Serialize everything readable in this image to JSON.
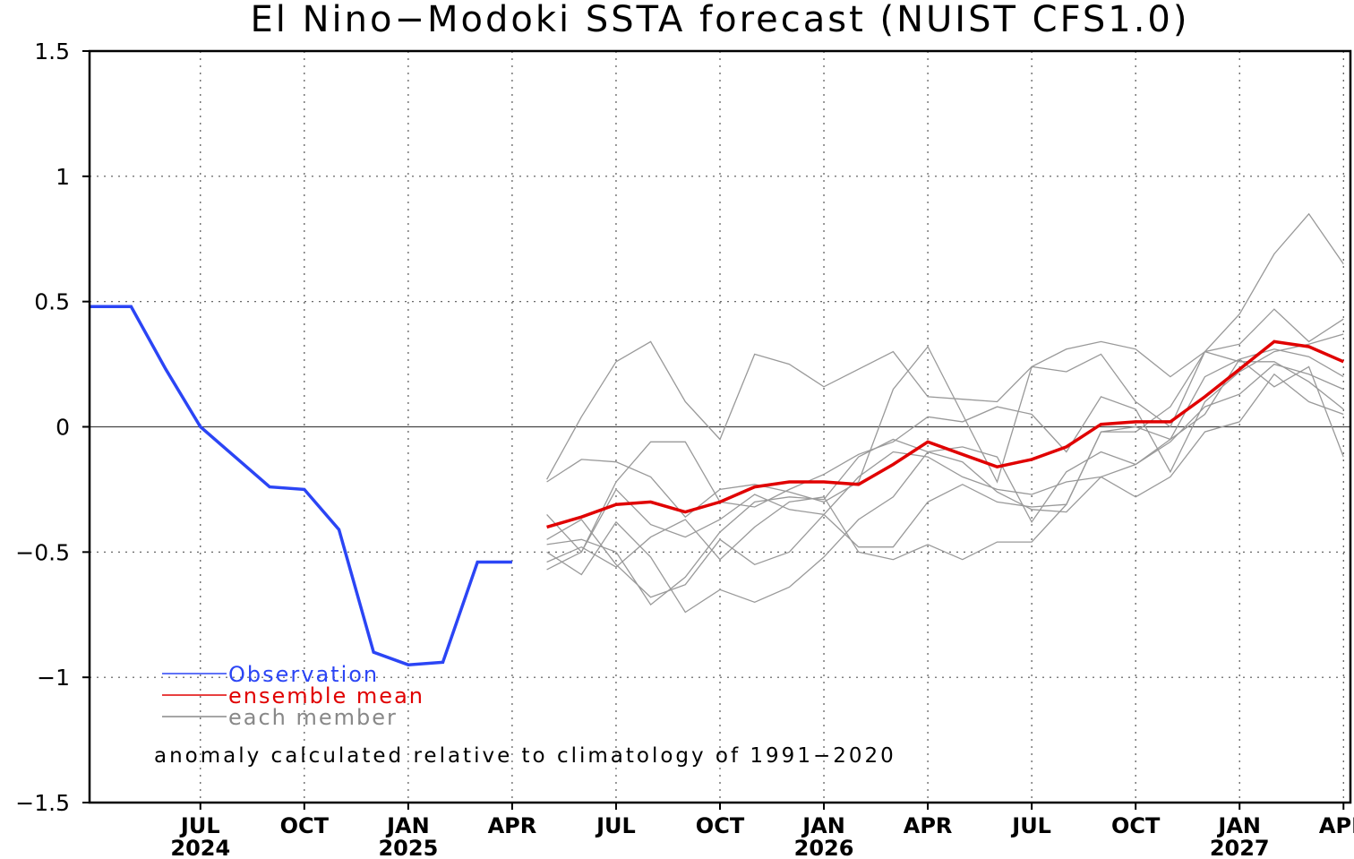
{
  "chart_data": {
    "type": "line",
    "title": "El Nino−Modoki SSTA forecast (NUIST CFS1.0)",
    "xlabel": "",
    "ylabel": "",
    "ylim": [
      -1.5,
      1.5
    ],
    "yticks": [
      1.5,
      1,
      0.5,
      0,
      -0.5,
      -1,
      -1.5
    ],
    "ytick_labels": [
      "1.5",
      "1",
      "0.5",
      "0",
      "−0.5",
      "−1",
      "−1.5"
    ],
    "x_unit": "months since Apr 2024 (Apr 2024 = 0)",
    "xlim": [
      -0.2,
      36.2
    ],
    "xticks": [
      {
        "month": 3,
        "label": "JUL",
        "year": "2024"
      },
      {
        "month": 6,
        "label": "OCT",
        "year": ""
      },
      {
        "month": 9,
        "label": "JAN",
        "year": "2025"
      },
      {
        "month": 12,
        "label": "APR",
        "year": ""
      },
      {
        "month": 15,
        "label": "JUL",
        "year": ""
      },
      {
        "month": 18,
        "label": "OCT",
        "year": ""
      },
      {
        "month": 21,
        "label": "JAN",
        "year": "2026"
      },
      {
        "month": 24,
        "label": "APR",
        "year": ""
      },
      {
        "month": 27,
        "label": "JUL",
        "year": ""
      },
      {
        "month": 30,
        "label": "OCT",
        "year": ""
      },
      {
        "month": 33,
        "label": "JAN",
        "year": "2027"
      },
      {
        "month": 36,
        "label": "APR",
        "year": ""
      }
    ],
    "grid": true,
    "zero_line": true,
    "legend": {
      "placement": "bottom-left",
      "entries": [
        {
          "name": "Observation",
          "color": "#2b45f5"
        },
        {
          "name": "ensemble mean",
          "color": "#e00000"
        },
        {
          "name": "each member",
          "color": "#888888"
        }
      ]
    },
    "annotation": "anomaly calculated relative to climatology of 1991−2020",
    "series": [
      {
        "name": "Observation",
        "color": "#2b45f5",
        "x": [
          -0.2,
          1,
          2,
          3,
          4,
          5,
          6,
          7,
          8,
          9,
          10,
          11,
          12
        ],
        "y": [
          0.48,
          0.48,
          0.23,
          0.0,
          -0.12,
          -0.24,
          -0.25,
          -0.41,
          -0.9,
          -0.95,
          -0.94,
          -0.54,
          -0.54
        ]
      },
      {
        "name": "ensemble mean",
        "color": "#e00000",
        "x": [
          13,
          14,
          15,
          16,
          17,
          18,
          19,
          20,
          21,
          22,
          23,
          24,
          25,
          26,
          27,
          28,
          29,
          30,
          31,
          32,
          33,
          34,
          35,
          36
        ],
        "y": [
          -0.4,
          -0.36,
          -0.31,
          -0.3,
          -0.34,
          -0.3,
          -0.24,
          -0.22,
          -0.22,
          -0.23,
          -0.15,
          -0.06,
          -0.11,
          -0.16,
          -0.13,
          -0.08,
          0.01,
          0.02,
          0.02,
          0.12,
          0.23,
          0.34,
          0.32,
          0.26
        ]
      }
    ],
    "members": [
      {
        "x": [
          13,
          14,
          15,
          16,
          17,
          18,
          19,
          20,
          21,
          22,
          23,
          24,
          25,
          26,
          27,
          28,
          29,
          30,
          31,
          32,
          33,
          34,
          35,
          36
        ],
        "y": [
          -0.21,
          0.04,
          0.26,
          0.34,
          0.1,
          -0.05,
          0.29,
          0.25,
          0.16,
          0.23,
          0.3,
          0.12,
          0.11,
          0.1,
          0.24,
          0.31,
          0.34,
          0.31,
          0.2,
          0.3,
          0.45,
          0.69,
          0.85,
          0.65
        ]
      },
      {
        "x": [
          13,
          14,
          15,
          16,
          17,
          18,
          19,
          20,
          21,
          22,
          23,
          24,
          25,
          26,
          27,
          28,
          29,
          30,
          31,
          32,
          33,
          34,
          35,
          36
        ],
        "y": [
          -0.22,
          -0.13,
          -0.14,
          -0.2,
          -0.36,
          -0.25,
          -0.23,
          -0.26,
          -0.3,
          -0.22,
          0.15,
          0.32,
          0.05,
          -0.22,
          0.24,
          0.22,
          0.29,
          0.1,
          0.0,
          0.3,
          0.33,
          0.47,
          0.34,
          0.43
        ]
      },
      {
        "x": [
          13,
          14,
          15,
          16,
          17,
          18,
          19,
          20,
          21,
          22,
          23,
          24,
          25,
          26,
          27,
          28,
          29,
          30,
          31,
          32,
          33,
          34,
          35,
          36
        ],
        "y": [
          -0.35,
          -0.5,
          -0.22,
          -0.06,
          -0.06,
          -0.3,
          -0.32,
          -0.25,
          -0.19,
          -0.11,
          -0.06,
          0.04,
          0.02,
          0.08,
          0.05,
          -0.1,
          0.12,
          0.07,
          -0.18,
          0.1,
          0.22,
          0.3,
          0.33,
          0.37
        ]
      },
      {
        "x": [
          13,
          14,
          15,
          16,
          17,
          18,
          19,
          20,
          21,
          22,
          23,
          24,
          25,
          26,
          27,
          28,
          29,
          30,
          31,
          32,
          33,
          34,
          35,
          36
        ],
        "y": [
          -0.47,
          -0.45,
          -0.5,
          -0.71,
          -0.6,
          -0.42,
          -0.3,
          -0.28,
          -0.29,
          -0.12,
          -0.05,
          -0.1,
          -0.08,
          -0.12,
          -0.38,
          -0.18,
          -0.1,
          -0.15,
          -0.05,
          0.05,
          0.27,
          0.31,
          0.28,
          0.2
        ]
      },
      {
        "x": [
          13,
          14,
          15,
          16,
          17,
          18,
          19,
          20,
          21,
          22,
          23,
          24,
          25,
          26,
          27,
          28,
          29,
          30,
          31,
          32,
          33,
          34,
          35,
          36
        ],
        "y": [
          -0.5,
          -0.59,
          -0.38,
          -0.52,
          -0.74,
          -0.65,
          -0.7,
          -0.64,
          -0.52,
          -0.37,
          -0.28,
          -0.1,
          -0.14,
          -0.26,
          -0.33,
          -0.34,
          -0.2,
          -0.15,
          -0.06,
          0.08,
          0.13,
          0.25,
          0.21,
          0.15
        ]
      },
      {
        "x": [
          13,
          14,
          15,
          16,
          17,
          18,
          19,
          20,
          21,
          22,
          23,
          24,
          25,
          26,
          27,
          28,
          29,
          30,
          31,
          32,
          33,
          34,
          35,
          36
        ],
        "y": [
          -0.57,
          -0.5,
          -0.25,
          -0.39,
          -0.44,
          -0.37,
          -0.27,
          -0.33,
          -0.35,
          -0.48,
          -0.48,
          -0.3,
          -0.23,
          -0.3,
          -0.32,
          -0.31,
          -0.02,
          -0.02,
          0.08,
          0.3,
          0.26,
          0.26,
          0.18,
          0.07
        ]
      },
      {
        "x": [
          13,
          14,
          15,
          16,
          17,
          18,
          19,
          20,
          21,
          22,
          23,
          24,
          25,
          26,
          27,
          28,
          29,
          30,
          31,
          32,
          33,
          34,
          35,
          36
        ],
        "y": [
          -0.45,
          -0.37,
          -0.55,
          -0.68,
          -0.63,
          -0.45,
          -0.55,
          -0.5,
          -0.35,
          -0.2,
          -0.1,
          -0.12,
          -0.2,
          -0.25,
          -0.27,
          -0.22,
          -0.2,
          -0.28,
          -0.2,
          -0.02,
          0.02,
          0.21,
          0.1,
          0.05
        ]
      },
      {
        "x": [
          13,
          14,
          15,
          16,
          17,
          18,
          19,
          20,
          21,
          22,
          23,
          24,
          25,
          26,
          27,
          28,
          29,
          30,
          31,
          32,
          33,
          34,
          35,
          36
        ],
        "y": [
          -0.54,
          -0.48,
          -0.56,
          -0.44,
          -0.37,
          -0.53,
          -0.4,
          -0.3,
          -0.28,
          -0.5,
          -0.53,
          -0.47,
          -0.53,
          -0.46,
          -0.46,
          -0.31,
          -0.02,
          0.0,
          -0.05,
          0.2,
          0.27,
          0.16,
          0.24,
          -0.12
        ]
      }
    ]
  }
}
